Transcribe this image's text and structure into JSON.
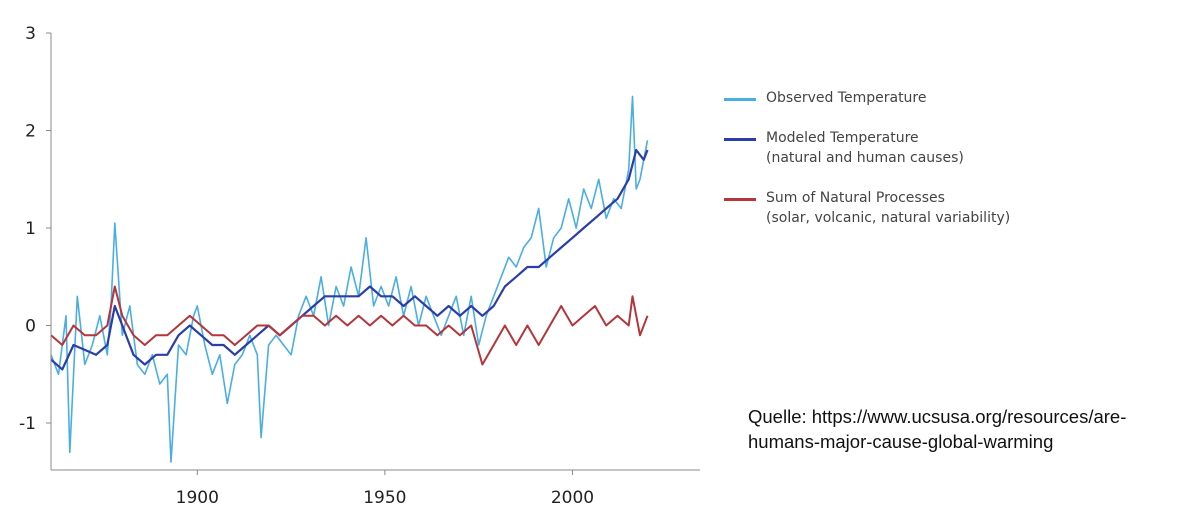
{
  "chart_data": {
    "type": "line",
    "title": "",
    "xlabel": "",
    "ylabel": "",
    "xlim": [
      1861,
      2034
    ],
    "ylim": [
      -1.5,
      3
    ],
    "x_ticks": [
      1900,
      1950,
      2000
    ],
    "y_ticks": [
      -1,
      0,
      1,
      2,
      3
    ],
    "grid": false,
    "legend_position": "right",
    "series": [
      {
        "name": "Observed Temperature",
        "sub": "",
        "color": "#4aaee4",
        "points": [
          [
            1861,
            -0.3
          ],
          [
            1863,
            -0.5
          ],
          [
            1865,
            0.1
          ],
          [
            1866,
            -1.3
          ],
          [
            1868,
            0.3
          ],
          [
            1870,
            -0.4
          ],
          [
            1872,
            -0.2
          ],
          [
            1874,
            0.1
          ],
          [
            1876,
            -0.3
          ],
          [
            1877,
            0.2
          ],
          [
            1878,
            1.05
          ],
          [
            1880,
            -0.1
          ],
          [
            1882,
            0.2
          ],
          [
            1884,
            -0.4
          ],
          [
            1886,
            -0.5
          ],
          [
            1888,
            -0.3
          ],
          [
            1890,
            -0.6
          ],
          [
            1892,
            -0.5
          ],
          [
            1893,
            -1.4
          ],
          [
            1895,
            -0.2
          ],
          [
            1897,
            -0.3
          ],
          [
            1899,
            0.1
          ],
          [
            1900,
            0.2
          ],
          [
            1902,
            -0.2
          ],
          [
            1904,
            -0.5
          ],
          [
            1906,
            -0.3
          ],
          [
            1908,
            -0.8
          ],
          [
            1910,
            -0.4
          ],
          [
            1912,
            -0.3
          ],
          [
            1914,
            -0.1
          ],
          [
            1916,
            -0.3
          ],
          [
            1917,
            -1.15
          ],
          [
            1919,
            -0.2
          ],
          [
            1921,
            -0.1
          ],
          [
            1923,
            -0.2
          ],
          [
            1925,
            -0.3
          ],
          [
            1927,
            0.1
          ],
          [
            1929,
            0.3
          ],
          [
            1931,
            0.1
          ],
          [
            1933,
            0.5
          ],
          [
            1935,
            0.0
          ],
          [
            1937,
            0.4
          ],
          [
            1939,
            0.2
          ],
          [
            1941,
            0.6
          ],
          [
            1943,
            0.3
          ],
          [
            1945,
            0.9
          ],
          [
            1947,
            0.2
          ],
          [
            1949,
            0.4
          ],
          [
            1951,
            0.2
          ],
          [
            1953,
            0.5
          ],
          [
            1955,
            0.1
          ],
          [
            1957,
            0.4
          ],
          [
            1959,
            0.0
          ],
          [
            1961,
            0.3
          ],
          [
            1963,
            0.1
          ],
          [
            1965,
            -0.1
          ],
          [
            1967,
            0.1
          ],
          [
            1969,
            0.3
          ],
          [
            1971,
            -0.1
          ],
          [
            1973,
            0.3
          ],
          [
            1975,
            -0.2
          ],
          [
            1977,
            0.1
          ],
          [
            1979,
            0.3
          ],
          [
            1981,
            0.5
          ],
          [
            1983,
            0.7
          ],
          [
            1985,
            0.6
          ],
          [
            1987,
            0.8
          ],
          [
            1989,
            0.9
          ],
          [
            1991,
            1.2
          ],
          [
            1993,
            0.6
          ],
          [
            1995,
            0.9
          ],
          [
            1997,
            1.0
          ],
          [
            1999,
            1.3
          ],
          [
            2001,
            1.0
          ],
          [
            2003,
            1.4
          ],
          [
            2005,
            1.2
          ],
          [
            2007,
            1.5
          ],
          [
            2009,
            1.1
          ],
          [
            2011,
            1.3
          ],
          [
            2013,
            1.2
          ],
          [
            2015,
            1.6
          ],
          [
            2016,
            2.35
          ],
          [
            2017,
            1.4
          ],
          [
            2018,
            1.5
          ],
          [
            2019,
            1.7
          ],
          [
            2020,
            1.9
          ]
        ]
      },
      {
        "name": "Modeled Temperature",
        "sub": "(natural and human causes)",
        "color": "#2b3ea8",
        "points": [
          [
            1861,
            -0.35
          ],
          [
            1864,
            -0.45
          ],
          [
            1867,
            -0.2
          ],
          [
            1870,
            -0.25
          ],
          [
            1873,
            -0.3
          ],
          [
            1876,
            -0.2
          ],
          [
            1878,
            0.2
          ],
          [
            1880,
            0.0
          ],
          [
            1883,
            -0.3
          ],
          [
            1886,
            -0.4
          ],
          [
            1889,
            -0.3
          ],
          [
            1892,
            -0.3
          ],
          [
            1895,
            -0.1
          ],
          [
            1898,
            0.0
          ],
          [
            1901,
            -0.1
          ],
          [
            1904,
            -0.2
          ],
          [
            1907,
            -0.2
          ],
          [
            1910,
            -0.3
          ],
          [
            1913,
            -0.2
          ],
          [
            1916,
            -0.1
          ],
          [
            1919,
            0.0
          ],
          [
            1922,
            -0.1
          ],
          [
            1925,
            0.0
          ],
          [
            1928,
            0.1
          ],
          [
            1931,
            0.2
          ],
          [
            1934,
            0.3
          ],
          [
            1937,
            0.3
          ],
          [
            1940,
            0.3
          ],
          [
            1943,
            0.3
          ],
          [
            1946,
            0.4
          ],
          [
            1949,
            0.3
          ],
          [
            1952,
            0.3
          ],
          [
            1955,
            0.2
          ],
          [
            1958,
            0.3
          ],
          [
            1961,
            0.2
          ],
          [
            1964,
            0.1
          ],
          [
            1967,
            0.2
          ],
          [
            1970,
            0.1
          ],
          [
            1973,
            0.2
          ],
          [
            1976,
            0.1
          ],
          [
            1979,
            0.2
          ],
          [
            1982,
            0.4
          ],
          [
            1985,
            0.5
          ],
          [
            1988,
            0.6
          ],
          [
            1991,
            0.6
          ],
          [
            1994,
            0.7
          ],
          [
            1997,
            0.8
          ],
          [
            2000,
            0.9
          ],
          [
            2003,
            1.0
          ],
          [
            2006,
            1.1
          ],
          [
            2009,
            1.2
          ],
          [
            2012,
            1.3
          ],
          [
            2015,
            1.5
          ],
          [
            2017,
            1.8
          ],
          [
            2019,
            1.7
          ],
          [
            2020,
            1.8
          ]
        ]
      },
      {
        "name": "Sum of Natural Processes",
        "sub": "(solar, volcanic, natural variability)",
        "color": "#b5353a",
        "points": [
          [
            1861,
            -0.1
          ],
          [
            1864,
            -0.2
          ],
          [
            1867,
            0.0
          ],
          [
            1870,
            -0.1
          ],
          [
            1873,
            -0.1
          ],
          [
            1876,
            0.0
          ],
          [
            1878,
            0.4
          ],
          [
            1880,
            0.1
          ],
          [
            1883,
            -0.1
          ],
          [
            1886,
            -0.2
          ],
          [
            1889,
            -0.1
          ],
          [
            1892,
            -0.1
          ],
          [
            1895,
            0.0
          ],
          [
            1898,
            0.1
          ],
          [
            1901,
            0.0
          ],
          [
            1904,
            -0.1
          ],
          [
            1907,
            -0.1
          ],
          [
            1910,
            -0.2
          ],
          [
            1913,
            -0.1
          ],
          [
            1916,
            0.0
          ],
          [
            1919,
            0.0
          ],
          [
            1922,
            -0.1
          ],
          [
            1925,
            0.0
          ],
          [
            1928,
            0.1
          ],
          [
            1931,
            0.1
          ],
          [
            1934,
            0.0
          ],
          [
            1937,
            0.1
          ],
          [
            1940,
            0.0
          ],
          [
            1943,
            0.1
          ],
          [
            1946,
            0.0
          ],
          [
            1949,
            0.1
          ],
          [
            1952,
            0.0
          ],
          [
            1955,
            0.1
          ],
          [
            1958,
            0.0
          ],
          [
            1961,
            0.0
          ],
          [
            1964,
            -0.1
          ],
          [
            1967,
            0.0
          ],
          [
            1970,
            -0.1
          ],
          [
            1973,
            0.0
          ],
          [
            1976,
            -0.4
          ],
          [
            1979,
            -0.2
          ],
          [
            1982,
            0.0
          ],
          [
            1985,
            -0.2
          ],
          [
            1988,
            0.0
          ],
          [
            1991,
            -0.2
          ],
          [
            1994,
            0.0
          ],
          [
            1997,
            0.2
          ],
          [
            2000,
            0.0
          ],
          [
            2003,
            0.1
          ],
          [
            2006,
            0.2
          ],
          [
            2009,
            0.0
          ],
          [
            2012,
            0.1
          ],
          [
            2015,
            0.0
          ],
          [
            2016,
            0.3
          ],
          [
            2018,
            -0.1
          ],
          [
            2020,
            0.1
          ]
        ]
      }
    ]
  },
  "source_line1": "Quelle: https://www.ucsusa.org/resources/are-",
  "source_line2": "humans-major-cause-global-warming"
}
